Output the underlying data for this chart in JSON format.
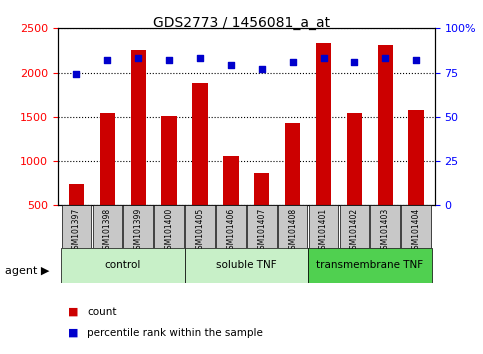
{
  "title": "GDS2773 / 1456081_a_at",
  "samples": [
    "GSM101397",
    "GSM101398",
    "GSM101399",
    "GSM101400",
    "GSM101405",
    "GSM101406",
    "GSM101407",
    "GSM101408",
    "GSM101401",
    "GSM101402",
    "GSM101403",
    "GSM101404"
  ],
  "counts": [
    740,
    1540,
    2260,
    1510,
    1880,
    1060,
    860,
    1430,
    2330,
    1540,
    2310,
    1580
  ],
  "percentiles": [
    74,
    82,
    83,
    82,
    83,
    79,
    77,
    81,
    83,
    81,
    83,
    82
  ],
  "groups": [
    {
      "label": "control",
      "start": 0,
      "end": 4,
      "color": "#c8f0c8"
    },
    {
      "label": "soluble TNF",
      "start": 4,
      "end": 8,
      "color": "#c8f0c8"
    },
    {
      "label": "transmembrane TNF",
      "start": 8,
      "end": 12,
      "color": "#50d050"
    }
  ],
  "ylim_left": [
    500,
    2500
  ],
  "ylim_right": [
    0,
    100
  ],
  "bar_color": "#cc0000",
  "dot_color": "#0000cc",
  "bg_color": "#c8c8c8",
  "plot_bg": "#ffffff",
  "grid_color": "#000000",
  "yticks_left": [
    500,
    1000,
    1500,
    2000,
    2500
  ],
  "yticks_right": [
    0,
    25,
    50,
    75,
    100
  ],
  "legend_count_label": "count",
  "legend_pct_label": "percentile rank within the sample",
  "agent_label": "agent"
}
